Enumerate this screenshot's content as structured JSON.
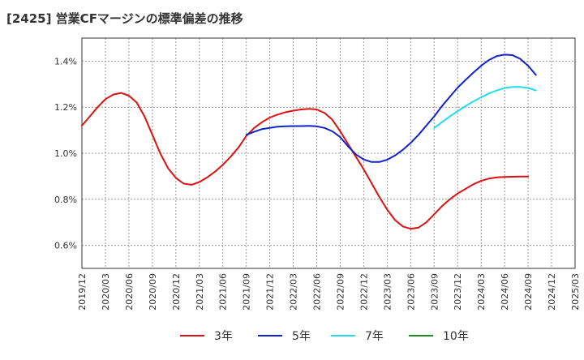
{
  "chart_data": {
    "type": "line",
    "title": "[2425]  営業CFマージンの標準偏差の推移",
    "xlabel": "",
    "ylabel": "",
    "ylim": [
      0.5,
      1.5
    ],
    "yticks": [
      {
        "value": 0.6,
        "label": "0.6%"
      },
      {
        "value": 0.8,
        "label": "0.8%"
      },
      {
        "value": 1.0,
        "label": "1.0%"
      },
      {
        "value": 1.2,
        "label": "1.2%"
      },
      {
        "value": 1.4,
        "label": "1.4%"
      }
    ],
    "xlim": [
      "2019-12",
      "2025-03"
    ],
    "xticks": [
      "2019/12",
      "2020/03",
      "2020/06",
      "2020/09",
      "2020/12",
      "2021/03",
      "2021/06",
      "2021/09",
      "2021/12",
      "2022/03",
      "2022/06",
      "2022/09",
      "2022/12",
      "2023/03",
      "2023/06",
      "2023/09",
      "2023/12",
      "2024/03",
      "2024/06",
      "2024/09",
      "2024/12",
      "2025/03"
    ],
    "grid": true,
    "legend_position": "bottom",
    "series": [
      {
        "name": "3年",
        "color": "#dd1111",
        "points": [
          [
            "2019-12",
            1.12
          ],
          [
            "2020-01",
            1.16
          ],
          [
            "2020-02",
            1.2
          ],
          [
            "2020-03",
            1.235
          ],
          [
            "2020-04",
            1.255
          ],
          [
            "2020-05",
            1.262
          ],
          [
            "2020-06",
            1.25
          ],
          [
            "2020-07",
            1.22
          ],
          [
            "2020-08",
            1.16
          ],
          [
            "2020-09",
            1.08
          ],
          [
            "2020-10",
            1.0
          ],
          [
            "2020-11",
            0.935
          ],
          [
            "2020-12",
            0.893
          ],
          [
            "2021-01",
            0.868
          ],
          [
            "2021-02",
            0.863
          ],
          [
            "2021-03",
            0.875
          ],
          [
            "2021-04",
            0.895
          ],
          [
            "2021-05",
            0.92
          ],
          [
            "2021-06",
            0.95
          ],
          [
            "2021-07",
            0.985
          ],
          [
            "2021-08",
            1.025
          ],
          [
            "2021-09",
            1.075
          ],
          [
            "2021-10",
            1.11
          ],
          [
            "2021-11",
            1.135
          ],
          [
            "2021-12",
            1.155
          ],
          [
            "2022-01",
            1.168
          ],
          [
            "2022-02",
            1.178
          ],
          [
            "2022-03",
            1.185
          ],
          [
            "2022-04",
            1.19
          ],
          [
            "2022-05",
            1.193
          ],
          [
            "2022-06",
            1.19
          ],
          [
            "2022-07",
            1.175
          ],
          [
            "2022-08",
            1.145
          ],
          [
            "2022-09",
            1.095
          ],
          [
            "2022-10",
            1.04
          ],
          [
            "2022-11",
            0.985
          ],
          [
            "2022-12",
            0.93
          ],
          [
            "2023-01",
            0.87
          ],
          [
            "2023-02",
            0.81
          ],
          [
            "2023-03",
            0.755
          ],
          [
            "2023-04",
            0.71
          ],
          [
            "2023-05",
            0.682
          ],
          [
            "2023-06",
            0.672
          ],
          [
            "2023-07",
            0.677
          ],
          [
            "2023-08",
            0.7
          ],
          [
            "2023-09",
            0.735
          ],
          [
            "2023-10",
            0.77
          ],
          [
            "2023-11",
            0.8
          ],
          [
            "2023-12",
            0.825
          ],
          [
            "2024-01",
            0.845
          ],
          [
            "2024-02",
            0.865
          ],
          [
            "2024-03",
            0.88
          ],
          [
            "2024-04",
            0.89
          ],
          [
            "2024-05",
            0.895
          ],
          [
            "2024-06",
            0.897
          ],
          [
            "2024-07",
            0.898
          ],
          [
            "2024-08",
            0.899
          ],
          [
            "2024-09",
            0.899
          ]
        ]
      },
      {
        "name": "5年",
        "color": "#1122cc",
        "points": [
          [
            "2021-09",
            1.08
          ],
          [
            "2021-10",
            1.093
          ],
          [
            "2021-11",
            1.105
          ],
          [
            "2021-12",
            1.11
          ],
          [
            "2022-01",
            1.115
          ],
          [
            "2022-02",
            1.117
          ],
          [
            "2022-03",
            1.118
          ],
          [
            "2022-04",
            1.118
          ],
          [
            "2022-05",
            1.119
          ],
          [
            "2022-06",
            1.117
          ],
          [
            "2022-07",
            1.11
          ],
          [
            "2022-08",
            1.095
          ],
          [
            "2022-09",
            1.07
          ],
          [
            "2022-10",
            1.03
          ],
          [
            "2022-11",
            0.995
          ],
          [
            "2022-12",
            0.973
          ],
          [
            "2023-01",
            0.962
          ],
          [
            "2023-02",
            0.962
          ],
          [
            "2023-03",
            0.972
          ],
          [
            "2023-04",
            0.99
          ],
          [
            "2023-05",
            1.015
          ],
          [
            "2023-06",
            1.045
          ],
          [
            "2023-07",
            1.08
          ],
          [
            "2023-08",
            1.12
          ],
          [
            "2023-09",
            1.16
          ],
          [
            "2023-10",
            1.205
          ],
          [
            "2023-11",
            1.245
          ],
          [
            "2023-12",
            1.285
          ],
          [
            "2024-01",
            1.318
          ],
          [
            "2024-02",
            1.35
          ],
          [
            "2024-03",
            1.38
          ],
          [
            "2024-04",
            1.405
          ],
          [
            "2024-05",
            1.422
          ],
          [
            "2024-06",
            1.428
          ],
          [
            "2024-07",
            1.426
          ],
          [
            "2024-08",
            1.41
          ],
          [
            "2024-09",
            1.38
          ],
          [
            "2024-10",
            1.34
          ]
        ]
      },
      {
        "name": "7年",
        "color": "#22ddee",
        "points": [
          [
            "2023-09",
            1.11
          ],
          [
            "2023-10",
            1.135
          ],
          [
            "2023-11",
            1.16
          ],
          [
            "2023-12",
            1.183
          ],
          [
            "2024-01",
            1.205
          ],
          [
            "2024-02",
            1.225
          ],
          [
            "2024-03",
            1.243
          ],
          [
            "2024-04",
            1.26
          ],
          [
            "2024-05",
            1.273
          ],
          [
            "2024-06",
            1.283
          ],
          [
            "2024-07",
            1.288
          ],
          [
            "2024-08",
            1.288
          ],
          [
            "2024-09",
            1.283
          ],
          [
            "2024-10",
            1.273
          ]
        ]
      },
      {
        "name": "10年",
        "color": "#228822",
        "points": []
      }
    ]
  }
}
